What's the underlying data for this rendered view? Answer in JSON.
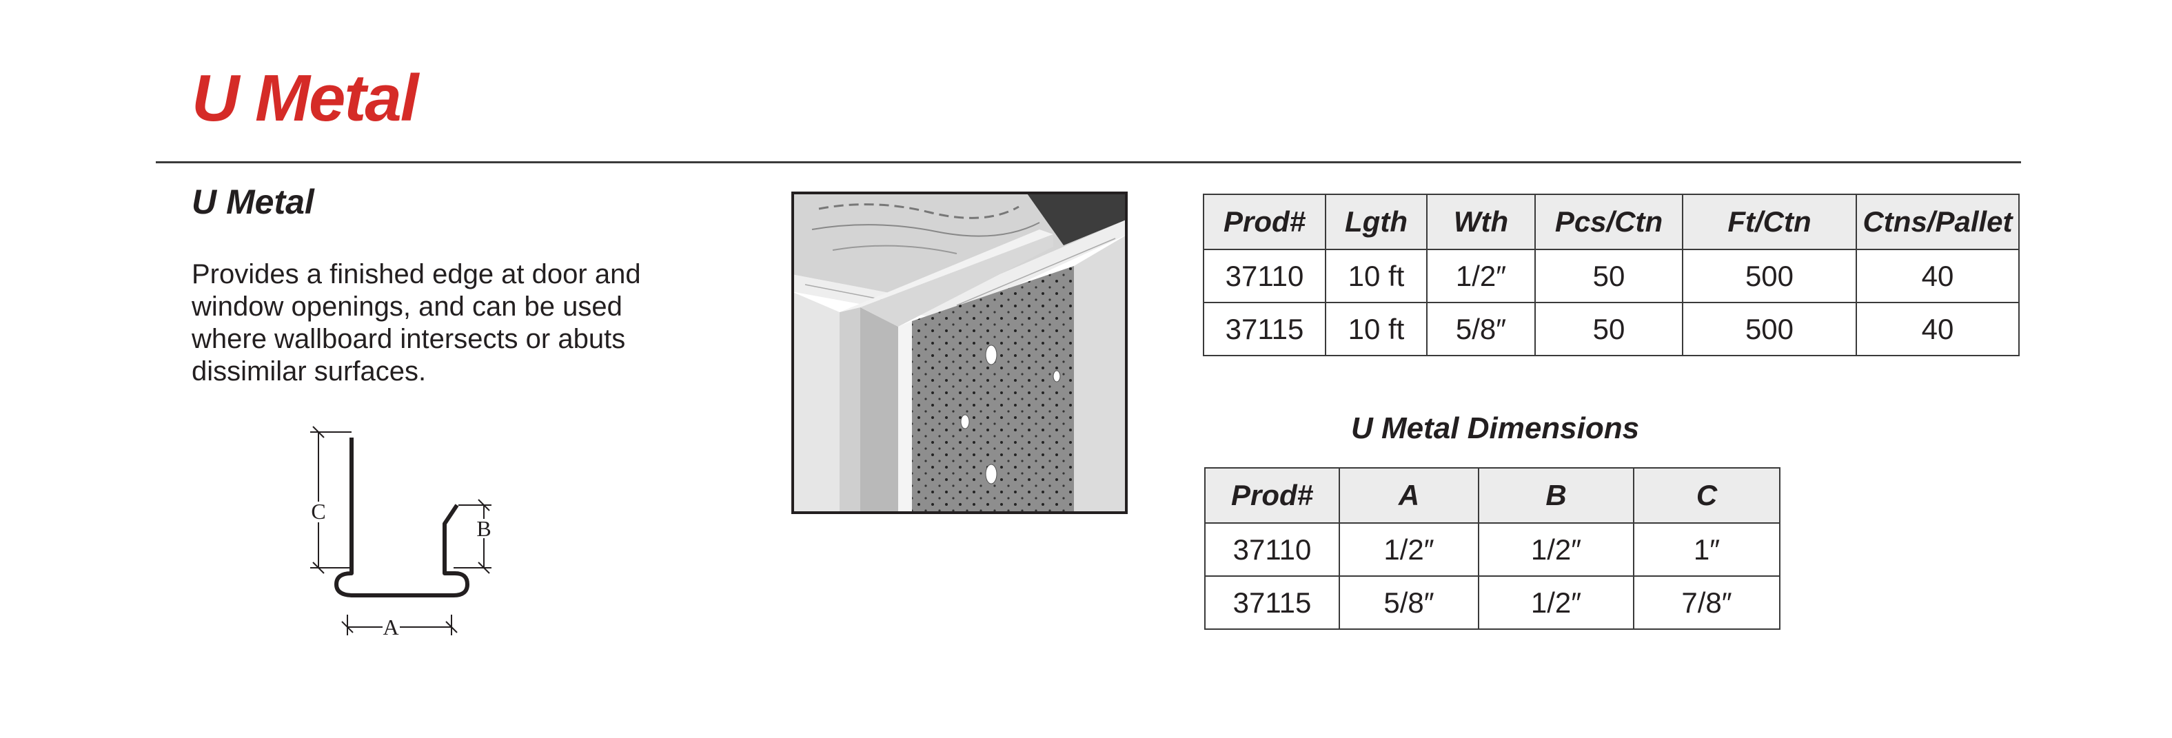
{
  "title": "U Metal",
  "section": {
    "heading": "U Metal",
    "description": "Provides a finished edge at door and window openings, and can be used where wallboard intersects or abuts dissimilar surfaces."
  },
  "diagram": {
    "label_a": "A",
    "label_b": "B",
    "label_c": "C"
  },
  "spec_table": {
    "headers": [
      "Prod#",
      "Lgth",
      "Wth",
      "Pcs/Ctn",
      "Ft/Ctn",
      "Ctns/Pallet"
    ],
    "rows": [
      [
        "37110",
        "10 ft",
        "1/2″",
        "50",
        "500",
        "40"
      ],
      [
        "37115",
        "10 ft",
        "5/8″",
        "50",
        "500",
        "40"
      ]
    ]
  },
  "dimensions": {
    "title": "U Metal Dimensions",
    "headers": [
      "Prod#",
      "A",
      "B",
      "C"
    ],
    "rows": [
      [
        "37110",
        "1/2″",
        "1/2″",
        "1″"
      ],
      [
        "37115",
        "5/8″",
        "1/2″",
        "7/8″"
      ]
    ]
  },
  "colors": {
    "title_red": "#d52b27",
    "text": "#231f20",
    "header_fill": "#ececec"
  }
}
